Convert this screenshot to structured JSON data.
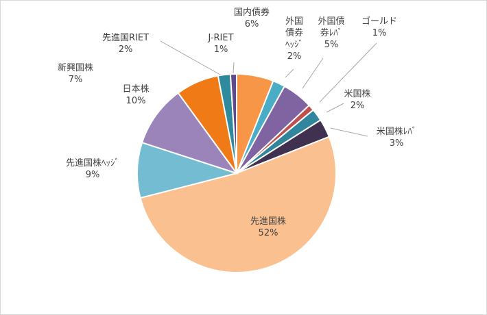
{
  "chart_data": {
    "type": "pie",
    "title": "",
    "start_angle_deg": 0,
    "direction": "clockwise",
    "slices": [
      {
        "label": "国内債券",
        "label_lines": [
          "国内債券"
        ],
        "value_label": "6%",
        "value": 6,
        "color": "#f79646"
      },
      {
        "label": "外国債券ヘッジ",
        "label_lines": [
          "外国",
          "債券",
          "ﾍｯｼﾞ"
        ],
        "value_label": "2%",
        "value": 2,
        "color": "#4bacc6"
      },
      {
        "label": "外国債券レバ",
        "label_lines": [
          "外国債",
          "券ﾚﾊﾞ"
        ],
        "value_label": "5%",
        "value": 5,
        "color": "#8064a2"
      },
      {
        "label": "ゴールド",
        "label_lines": [
          "ゴールド"
        ],
        "value_label": "1%",
        "value": 1,
        "color": "#c0504d"
      },
      {
        "label": "米国株",
        "label_lines": [
          "米国株"
        ],
        "value_label": "2%",
        "value": 2,
        "color": "#31859c"
      },
      {
        "label": "米国株レバ",
        "label_lines": [
          "米国株ﾚﾊﾞ"
        ],
        "value_label": "3%",
        "value": 3,
        "color": "#403151"
      },
      {
        "label": "先進国株",
        "label_lines": [
          "先進国株"
        ],
        "value_label": "52%",
        "value": 52,
        "color": "#fac090"
      },
      {
        "label": "先進国株ヘッジ",
        "label_lines": [
          "先進国株ﾍｯｼﾞ"
        ],
        "value_label": "9%",
        "value": 9,
        "color": "#73bcd1"
      },
      {
        "label": "日本株",
        "label_lines": [
          "日本株"
        ],
        "value_label": "10%",
        "value": 10,
        "color": "#9a84ba"
      },
      {
        "label": "新興国株",
        "label_lines": [
          "新興国株"
        ],
        "value_label": "7%",
        "value": 7,
        "color": "#f07a16"
      },
      {
        "label": "先進国RIET",
        "label_lines": [
          "先進国RIET"
        ],
        "value_label": "2%",
        "value": 2,
        "color": "#2f8a9e"
      },
      {
        "label": "J-RIET",
        "label_lines": [
          "J-RIET"
        ],
        "value_label": "1%",
        "value": 1,
        "color": "#5f4b8b"
      }
    ],
    "legend": "none",
    "data_labels": "category name and percentage"
  }
}
